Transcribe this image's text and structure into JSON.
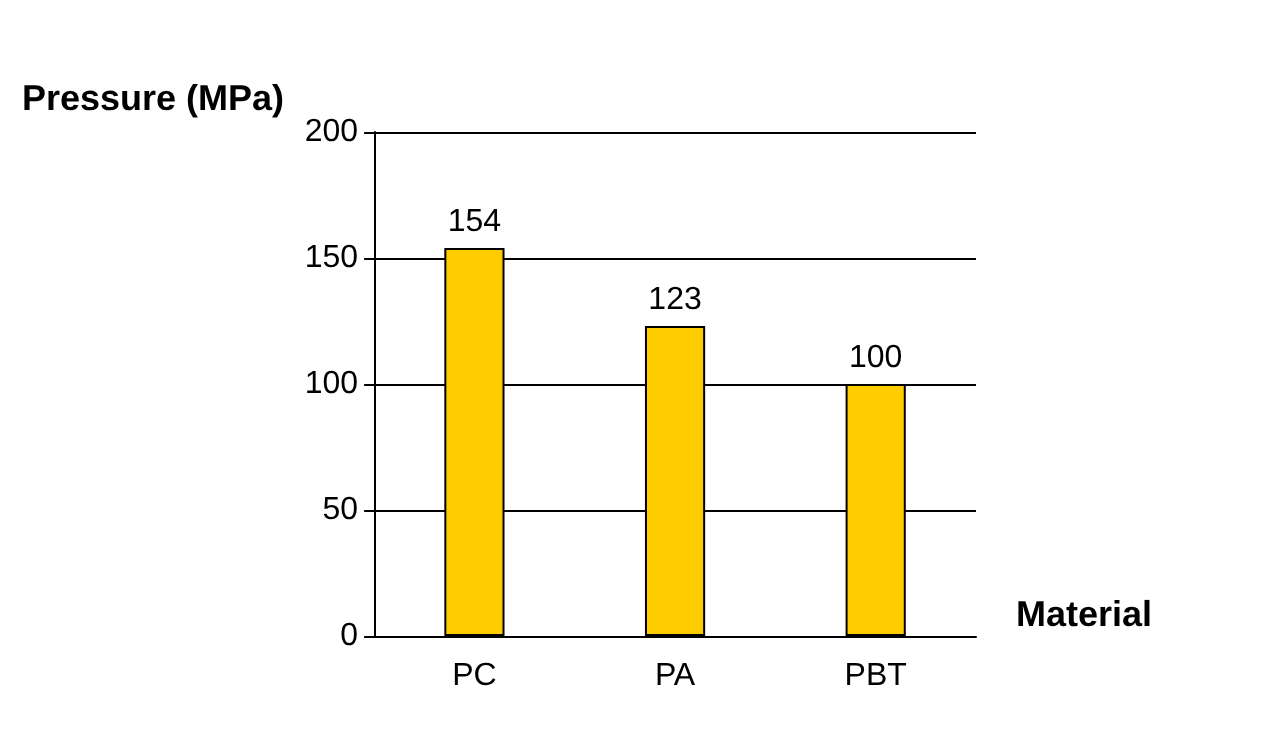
{
  "chart_data": {
    "type": "bar",
    "xlabel": "Material",
    "ylabel": "Pressure (MPa)",
    "categories": [
      "PC",
      "PA",
      "PBT"
    ],
    "values": [
      154,
      123,
      100
    ],
    "color": "#ffcc00",
    "ylim": [
      0,
      200
    ],
    "yticks": [
      0,
      50,
      100,
      150,
      200
    ],
    "grid": "y",
    "data_labels": true
  }
}
